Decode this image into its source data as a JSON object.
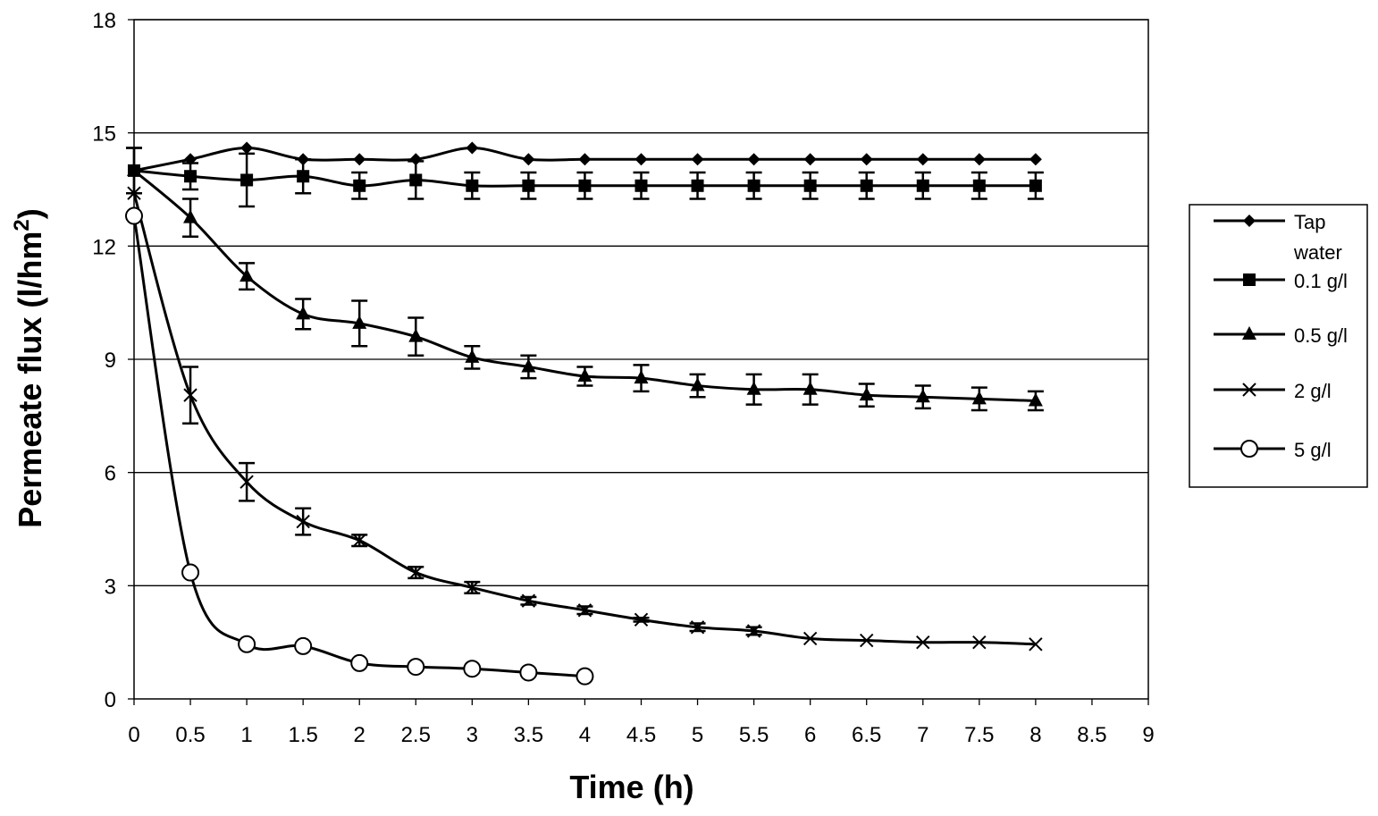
{
  "chart_data": {
    "type": "line",
    "xlabel": "Time (h)",
    "ylabel_main": "Permeate flux (l/hm",
    "ylabel_sup": "2",
    "ylabel_close": ")",
    "xlim": [
      0,
      9
    ],
    "ylim": [
      0,
      18
    ],
    "x_ticks": [
      "0",
      "0.5",
      "1",
      "1.5",
      "2",
      "2.5",
      "3",
      "3.5",
      "4",
      "4.5",
      "5",
      "5.5",
      "6",
      "6.5",
      "7",
      "7.5",
      "8",
      "8.5",
      "9"
    ],
    "y_ticks": [
      "0",
      "3",
      "6",
      "9",
      "12",
      "15",
      "18"
    ],
    "y_gridlines": [
      3,
      6,
      9,
      12,
      15,
      18
    ],
    "legend_placement": "right",
    "series": [
      {
        "name": "Tap water",
        "marker": "diamond",
        "x": [
          0,
          0.5,
          1,
          1.5,
          2,
          2.5,
          3,
          3.5,
          4,
          4.5,
          5,
          5.5,
          6,
          6.5,
          7,
          7.5,
          8
        ],
        "y": [
          14.0,
          14.3,
          14.6,
          14.3,
          14.3,
          14.3,
          14.6,
          14.3,
          14.3,
          14.3,
          14.3,
          14.3,
          14.3,
          14.3,
          14.3,
          14.3,
          14.3
        ],
        "err": []
      },
      {
        "name": "0.1 g/l",
        "marker": "square",
        "x": [
          0,
          0.5,
          1,
          1.5,
          2,
          2.5,
          3,
          3.5,
          4,
          4.5,
          5,
          5.5,
          6,
          6.5,
          7,
          7.5,
          8
        ],
        "y": [
          14.0,
          13.85,
          13.75,
          13.85,
          13.6,
          13.75,
          13.6,
          13.6,
          13.6,
          13.6,
          13.6,
          13.6,
          13.6,
          13.6,
          13.6,
          13.6,
          13.6
        ],
        "err": [
          0.6,
          0.35,
          0.7,
          0.45,
          0.35,
          0.5,
          0.35,
          0.35,
          0.35,
          0.35,
          0.35,
          0.35,
          0.35,
          0.35,
          0.35,
          0.35,
          0.35
        ]
      },
      {
        "name": "0.5 g/l",
        "marker": "triangle",
        "x": [
          0,
          0.5,
          1,
          1.5,
          2,
          2.5,
          3,
          3.5,
          4,
          4.5,
          5,
          5.5,
          6,
          6.5,
          7,
          7.5,
          8
        ],
        "y": [
          14.0,
          12.75,
          11.2,
          10.2,
          9.95,
          9.6,
          9.05,
          8.8,
          8.55,
          8.5,
          8.3,
          8.2,
          8.2,
          8.05,
          8.0,
          7.95,
          7.9
        ],
        "err": [
          0.6,
          0.5,
          0.35,
          0.4,
          0.6,
          0.5,
          0.3,
          0.3,
          0.25,
          0.35,
          0.3,
          0.4,
          0.4,
          0.3,
          0.3,
          0.3,
          0.25
        ]
      },
      {
        "name": "2 g/l",
        "marker": "x",
        "x": [
          0,
          0.5,
          1,
          1.5,
          2,
          2.5,
          3,
          3.5,
          4,
          4.5,
          5,
          5.5,
          6,
          6.5,
          7,
          7.5,
          8
        ],
        "y": [
          13.4,
          8.05,
          5.75,
          4.7,
          4.2,
          3.35,
          2.95,
          2.6,
          2.35,
          2.1,
          1.9,
          1.8,
          1.6,
          1.55,
          1.5,
          1.5,
          1.45
        ],
        "err": [
          0,
          0.75,
          0.5,
          0.35,
          0.15,
          0.15,
          0.15,
          0.1,
          0.1,
          0.05,
          0.1,
          0.1,
          0,
          0,
          0,
          0,
          0
        ]
      },
      {
        "name": "5 g/l",
        "marker": "circle",
        "x": [
          0,
          0.5,
          1,
          1.5,
          2,
          2.5,
          3,
          3.5,
          4
        ],
        "y": [
          12.8,
          3.35,
          1.45,
          1.4,
          0.95,
          0.85,
          0.8,
          0.7,
          0.6
        ],
        "err": []
      }
    ]
  }
}
